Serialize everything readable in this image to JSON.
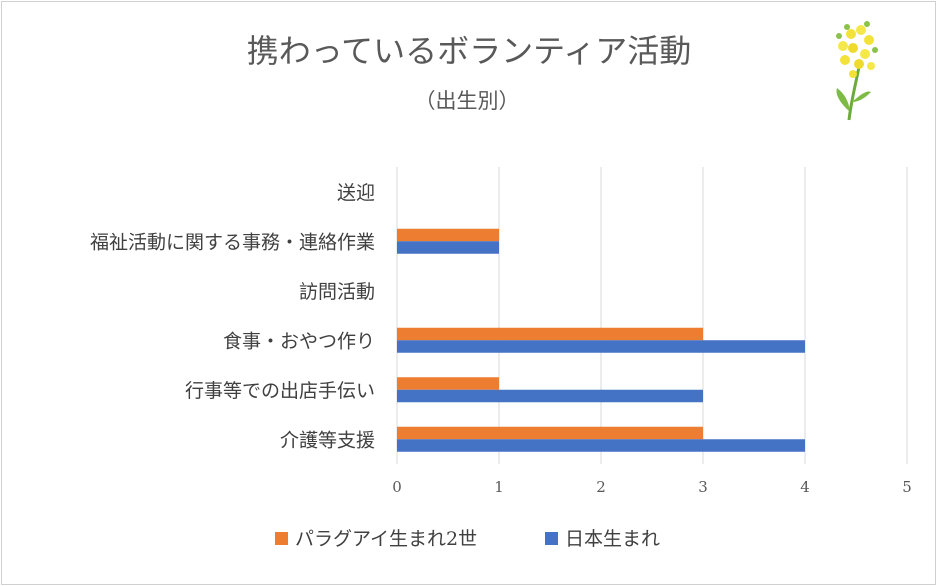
{
  "chart_data": {
    "type": "bar",
    "orientation": "horizontal",
    "title": "携わっているボランティア活動",
    "subtitle": "（出生別）",
    "categories": [
      "送迎",
      "福祉活動に関する事務・連絡作業",
      "訪問活動",
      "食事・おやつ作り",
      "行事等での出店手伝い",
      "介護等支援"
    ],
    "series": [
      {
        "name": "パラグアイ生まれ2世",
        "color": "#ED7D31",
        "values": [
          0,
          1,
          0,
          3,
          1,
          3
        ]
      },
      {
        "name": "日本生まれ",
        "color": "#4472C4",
        "values": [
          0,
          1,
          0,
          4,
          3,
          4
        ]
      }
    ],
    "xlim": [
      0,
      5
    ],
    "xticks": [
      0,
      1,
      2,
      3,
      4,
      5
    ],
    "grid": true,
    "legend_position": "bottom",
    "decoration_icon": "rapeseed-flower-icon"
  }
}
